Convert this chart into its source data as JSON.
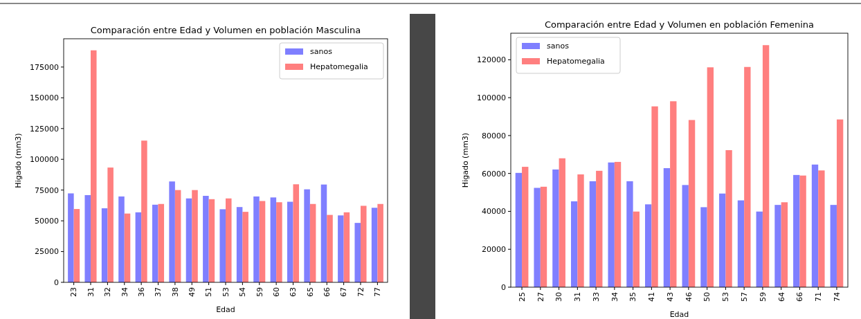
{
  "chart_data": [
    {
      "type": "bar",
      "title": "Comparación entre Edad y Volumen en población Masculina",
      "xlabel": "Edad",
      "ylabel": "Higado (mm3)",
      "categories": [
        "23",
        "31",
        "32",
        "34",
        "36",
        "37",
        "38",
        "49",
        "51",
        "53",
        "54",
        "59",
        "60",
        "63",
        "65",
        "66",
        "67",
        "72",
        "77"
      ],
      "series": [
        {
          "name": "sanos",
          "color": "#7f7fff",
          "values": [
            72300,
            70900,
            60200,
            69800,
            56900,
            63100,
            82000,
            68200,
            70300,
            59400,
            61200,
            69800,
            69000,
            65500,
            75600,
            79500,
            54400,
            48300,
            60600
          ]
        },
        {
          "name": "Hepatomegalia",
          "color": "#ff7f7f",
          "values": [
            59600,
            188600,
            93300,
            55900,
            115200,
            63700,
            75000,
            75000,
            67600,
            68200,
            57300,
            66100,
            65100,
            79700,
            63700,
            54800,
            56900,
            62200,
            63700
          ]
        }
      ],
      "ylim": [
        0,
        198000
      ],
      "yticks": [
        0,
        25000,
        50000,
        75000,
        100000,
        125000,
        150000,
        175000
      ],
      "grid": false,
      "legend": "top right"
    },
    {
      "type": "bar",
      "title": "Comparación entre Edad y Volumen en población Femenina",
      "xlabel": "Edad",
      "ylabel": "Higado (mm3)",
      "categories": [
        "25",
        "27",
        "30",
        "31",
        "33",
        "34",
        "35",
        "41",
        "43",
        "46",
        "50",
        "53",
        "57",
        "59",
        "64",
        "66",
        "71",
        "74"
      ],
      "series": [
        {
          "name": "sanos",
          "color": "#7f7fff",
          "values": [
            60300,
            52400,
            62100,
            45300,
            55900,
            65800,
            55900,
            43700,
            62800,
            53900,
            42200,
            49400,
            45800,
            39900,
            43400,
            59200,
            64700,
            43400
          ]
        },
        {
          "name": "Hepatomegalia",
          "color": "#ff7f7f",
          "values": [
            63500,
            53000,
            68000,
            59500,
            61400,
            66100,
            39900,
            95400,
            98100,
            88200,
            116000,
            72300,
            116200,
            127700,
            44800,
            58900,
            61600,
            88500
          ]
        }
      ],
      "ylim": [
        0,
        134000
      ],
      "yticks": [
        0,
        20000,
        40000,
        60000,
        80000,
        100000,
        120000
      ],
      "grid": false,
      "legend": "top left"
    }
  ]
}
